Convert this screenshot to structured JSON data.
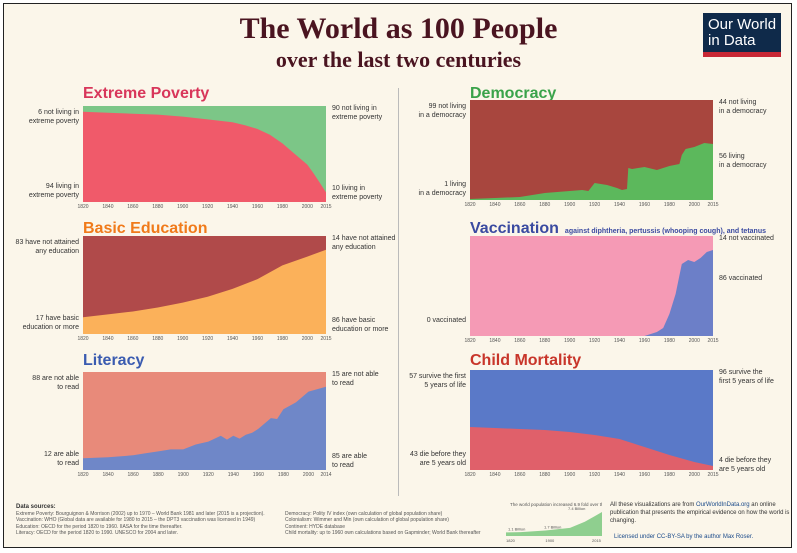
{
  "header": {
    "title": "The World as 100 People",
    "subtitle": "over the last two centuries",
    "logo_line1": "Our World",
    "logo_line2": "in Data"
  },
  "colors": {
    "poverty_title": "#d8365a",
    "education_title": "#f07a1a",
    "literacy_title": "#3a5bb0",
    "democracy_title": "#3aa34a",
    "vaccination_title": "#3a4aa0",
    "mortality_title": "#c8352a"
  },
  "chart_data": [
    {
      "id": "poverty",
      "type": "area",
      "title": "Extreme Poverty",
      "x": [
        1820,
        1840,
        1860,
        1880,
        1900,
        1920,
        1940,
        1950,
        1960,
        1970,
        1980,
        1990,
        2000,
        2005,
        2010,
        2015
      ],
      "y_bottom_share": [
        94,
        93,
        92,
        91,
        89,
        86,
        83,
        80,
        76,
        70,
        61,
        50,
        39,
        30,
        20,
        10
      ],
      "series": [
        {
          "name": "living in extreme poverty",
          "color": "#f05a6a"
        },
        {
          "name": "not living in extreme poverty",
          "color": "#7cc687"
        }
      ],
      "ylim": [
        0,
        100
      ],
      "left_top_label": [
        "6 not living in",
        "extreme poverty"
      ],
      "left_bottom_label": [
        "94 living in",
        "extreme poverty"
      ],
      "right_top_label": [
        "90 not living in",
        "extreme poverty"
      ],
      "right_bottom_label": [
        "10 living in",
        "extreme poverty"
      ],
      "ticks": [
        "1820",
        "1840",
        "1860",
        "1880",
        "1900",
        "1920",
        "1940",
        "1960",
        "1980",
        "2000",
        "2015"
      ]
    },
    {
      "id": "education",
      "type": "area",
      "title": "Basic Education",
      "x": [
        1820,
        1840,
        1860,
        1880,
        1900,
        1920,
        1940,
        1960,
        1980,
        2000,
        2015
      ],
      "y_bottom_share": [
        17,
        20,
        23,
        27,
        32,
        38,
        46,
        56,
        70,
        79,
        86
      ],
      "series": [
        {
          "name": "have basic education or more",
          "color": "#fbb15a"
        },
        {
          "name": "have not attained any education",
          "color": "#b04a4a"
        }
      ],
      "ylim": [
        0,
        100
      ],
      "left_top_label": [
        "83 have not attained",
        "any education"
      ],
      "left_bottom_label": [
        "17 have basic",
        "education or more"
      ],
      "right_top_label": [
        "14 have not attained",
        "any education"
      ],
      "right_bottom_label": [
        "86 have basic",
        "education or more"
      ],
      "ticks": [
        "1820",
        "1840",
        "1860",
        "1880",
        "1900",
        "1920",
        "1940",
        "1960",
        "1980",
        "2000",
        "2015"
      ]
    },
    {
      "id": "literacy",
      "type": "area",
      "title": "Literacy",
      "x": [
        1820,
        1840,
        1860,
        1870,
        1880,
        1890,
        1900,
        1910,
        1920,
        1930,
        1935,
        1940,
        1945,
        1950,
        1955,
        1960,
        1970,
        1975,
        1980,
        1990,
        2000,
        2014
      ],
      "y_bottom_share": [
        12,
        13,
        15,
        17,
        19,
        21,
        21,
        26,
        29,
        35,
        31,
        35,
        32,
        36,
        38,
        42,
        53,
        52,
        62,
        69,
        80,
        85
      ],
      "series": [
        {
          "name": "are able to read",
          "color": "#6f87c8"
        },
        {
          "name": "are not able to read",
          "color": "#e88a7a"
        }
      ],
      "ylim": [
        0,
        100
      ],
      "left_top_label": [
        "88 are not able",
        "to read"
      ],
      "left_bottom_label": [
        "12 are able",
        "to read"
      ],
      "right_top_label": [
        "15 are not able",
        "to read"
      ],
      "right_bottom_label": [
        "85 are able",
        "to read"
      ],
      "ticks": [
        "1820",
        "1840",
        "1860",
        "1880",
        "1900",
        "1920",
        "1940",
        "1960",
        "1980",
        "2000",
        "2014"
      ]
    },
    {
      "id": "democracy",
      "type": "area",
      "title": "Democracy",
      "x": [
        1820,
        1840,
        1860,
        1870,
        1880,
        1890,
        1900,
        1910,
        1915,
        1920,
        1925,
        1930,
        1938,
        1942,
        1946,
        1947,
        1950,
        1960,
        1970,
        1980,
        1988,
        1990,
        1993,
        2000,
        2008,
        2015
      ],
      "y_bottom_share": [
        1,
        2,
        3,
        5,
        7,
        8,
        9,
        10,
        9,
        17,
        16,
        15,
        12,
        10,
        11,
        32,
        31,
        33,
        30,
        34,
        36,
        45,
        51,
        53,
        57,
        56
      ],
      "series": [
        {
          "name": "living in a democracy",
          "color": "#5cb85c"
        },
        {
          "name": "not living in a democracy",
          "color": "#a8463e"
        }
      ],
      "ylim": [
        0,
        100
      ],
      "left_top_label": [
        "99 not living",
        "in a democracy"
      ],
      "left_bottom_label": [
        "1 living",
        "in a democracy"
      ],
      "right_top_label": [
        "44 not living",
        "in a democracy"
      ],
      "right_bottom_label": [
        "56 living",
        "in a democracy"
      ],
      "ticks": [
        "1820",
        "1840",
        "1860",
        "1880",
        "1900",
        "1920",
        "1940",
        "1960",
        "1980",
        "2000",
        "2015"
      ]
    },
    {
      "id": "vaccination",
      "type": "area",
      "title": "Vaccination",
      "subtitle": "against diphtheria, pertussis (whooping cough), and tetanus",
      "x": [
        1820,
        1900,
        1960,
        1970,
        1975,
        1980,
        1985,
        1990,
        1995,
        2000,
        2005,
        2010,
        2015
      ],
      "y_bottom_share": [
        0,
        0,
        0,
        4,
        8,
        22,
        42,
        72,
        76,
        74,
        78,
        84,
        86
      ],
      "series": [
        {
          "name": "vaccinated",
          "color": "#6c7fc8"
        },
        {
          "name": "not vaccinated",
          "color": "#f59ab5"
        }
      ],
      "ylim": [
        0,
        100
      ],
      "left_bottom_label": [
        "0 vaccinated"
      ],
      "right_top_label": [
        "14 not vaccinated"
      ],
      "right_bottom_label": [
        "86 vaccinated"
      ],
      "ticks": [
        "1820",
        "1840",
        "1860",
        "1880",
        "1900",
        "1920",
        "1940",
        "1960",
        "1980",
        "2000",
        "2015"
      ]
    },
    {
      "id": "mortality",
      "type": "area",
      "title": "Child Mortality",
      "x": [
        1820,
        1840,
        1860,
        1880,
        1900,
        1920,
        1940,
        1960,
        1980,
        2000,
        2015
      ],
      "y_bottom_share": [
        43,
        42,
        41,
        40,
        38,
        35,
        31,
        23,
        15,
        8,
        4
      ],
      "series": [
        {
          "name": "die before they are 5 years old",
          "color": "#e0606a"
        },
        {
          "name": "survive the first 5 years of life",
          "color": "#5a79c8"
        }
      ],
      "ylim": [
        0,
        100
      ],
      "left_top_label": [
        "57 survive the first",
        "5 years of life"
      ],
      "left_bottom_label": [
        "43 die before they",
        "are 5 years old"
      ],
      "right_top_label": [
        "96 survive the",
        "first 5 years of life"
      ],
      "right_bottom_label": [
        "4 die before they",
        "are 5 years old"
      ],
      "ticks": [
        "1820",
        "1840",
        "1860",
        "1880",
        "1900",
        "1920",
        "1940",
        "1960",
        "1980",
        "2000",
        "2015"
      ]
    },
    {
      "id": "population",
      "type": "area",
      "title": "The world population increased 6.9 fold over these 2 centuries.",
      "x": [
        1820,
        1850,
        1900,
        1950,
        1980,
        2000,
        2015
      ],
      "values": [
        1.1,
        1.2,
        1.7,
        2.5,
        4.4,
        6.1,
        7.4
      ],
      "labels": [
        "1.1 Billion",
        "1.7 Billion",
        "7.4 Billion"
      ],
      "ticks": [
        "1820",
        "1900",
        "2015"
      ],
      "series": [
        {
          "name": "world population",
          "color": "#8fcf8f"
        }
      ]
    }
  ],
  "footer": {
    "sources_title": "Data sources:",
    "sources_left": [
      "Extreme Poverty: Bourguignon & Morrison (2002) up to 1970 – World Bank 1981 and later (2015 is a projection).",
      "Vaccination: WHO (Global data are available for 1980 to 2015 – the DPT3 vaccination was licensed in 1949)",
      "Education: OECD for the period 1820 to 1960. IIASA for the time thereafter.",
      "Literacy: OECD for the period 1820 to 1990. UNESCO for 2004 and later."
    ],
    "sources_right": [
      "Democracy: Polity IV index (own calculation of global population share)",
      "Colonialism: Wimmer and Min (own calculation of global population share)",
      "Continent: HYDE database",
      "Child mortality: up to 1960 own calculations based on Gapminder; World Bank thereafter"
    ],
    "credit_prefix": "All these visualizations are from",
    "credit_link": "OurWorldInData.org",
    "credit_suffix": "an online publication that presents the empirical evidence on how the world is changing.",
    "license": "Licensed under CC-BY-SA by the author Max Roser."
  }
}
